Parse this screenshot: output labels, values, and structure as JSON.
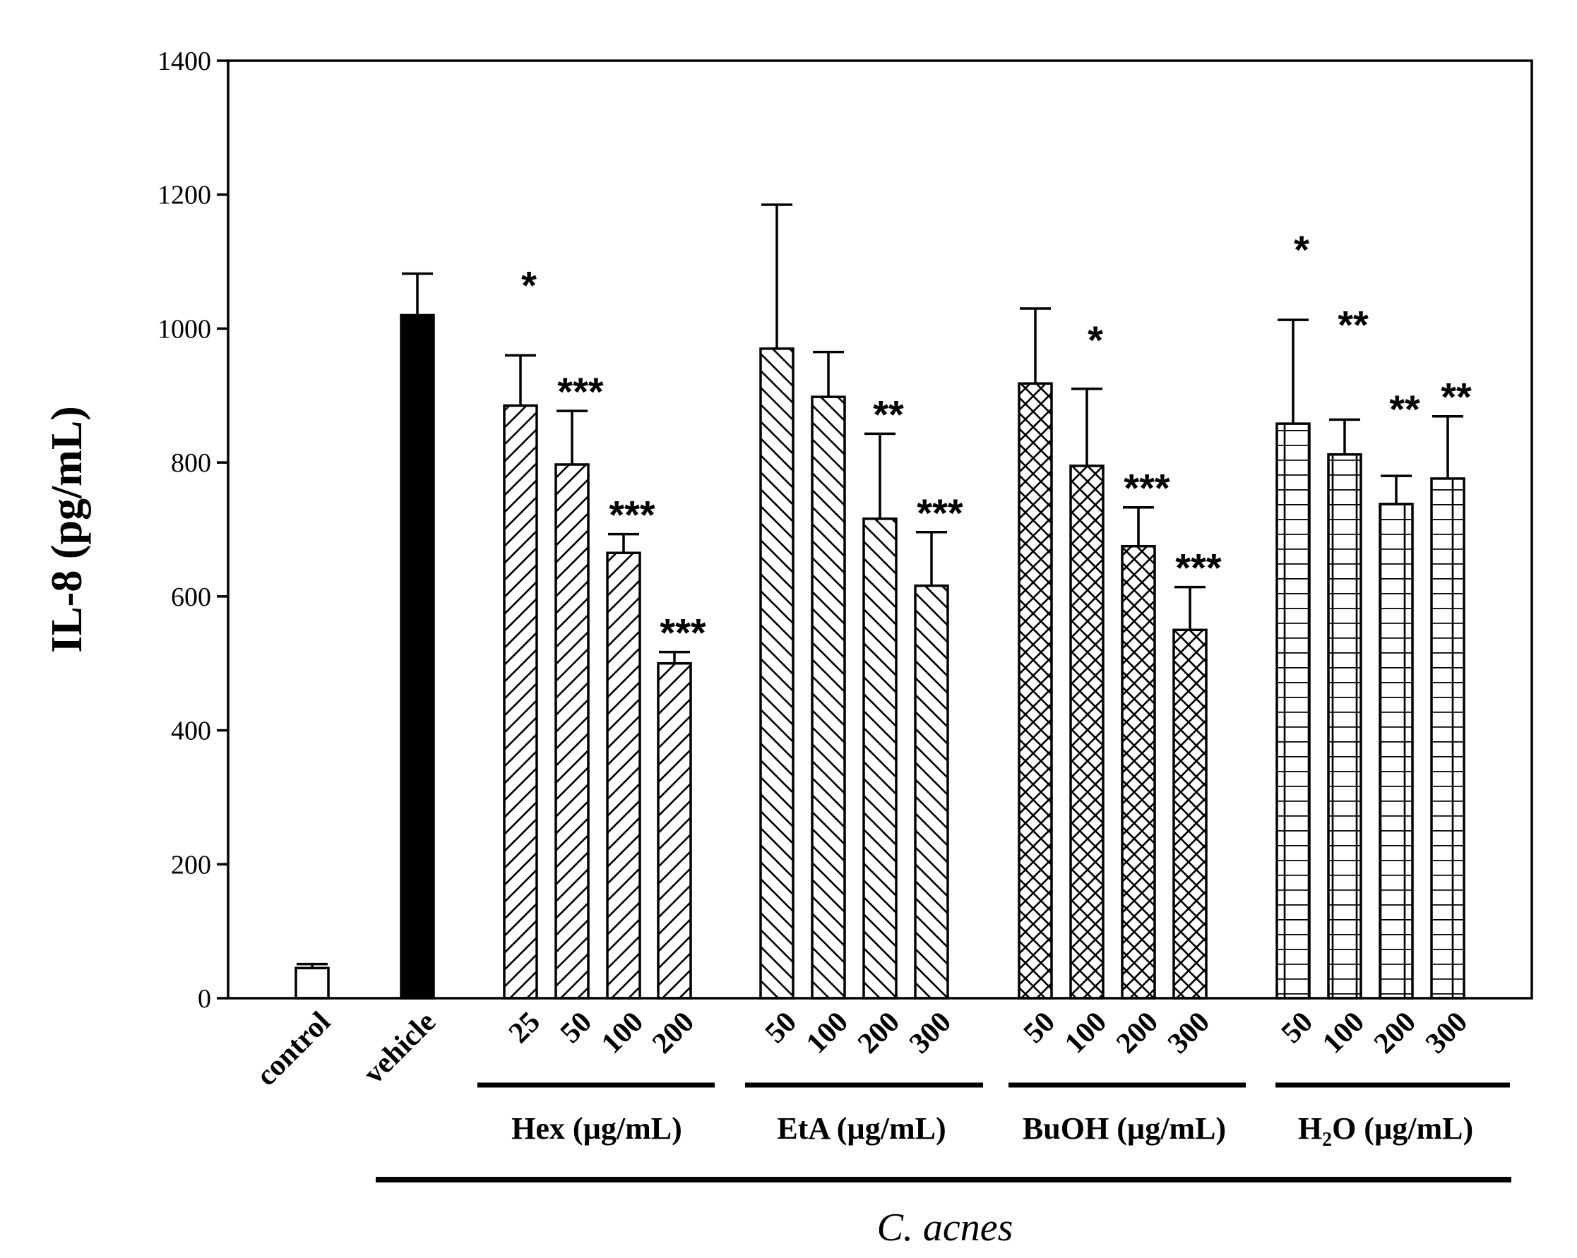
{
  "chart_data": {
    "type": "bar",
    "ylabel": "IL-8 (pg/mL)",
    "xlabel": "C. acnes",
    "ylim": [
      0,
      1400
    ],
    "yticks": [
      0,
      200,
      400,
      600,
      800,
      1000,
      1200,
      1400
    ],
    "ytick_labels": [
      "0",
      "200",
      "400",
      "600",
      "800",
      "1000",
      "1200",
      "1400"
    ],
    "bars": [
      {
        "group": "control",
        "label": "control",
        "value": 45,
        "error": 6,
        "sig": "",
        "pattern": "open"
      },
      {
        "group": "vehicle",
        "label": "vehicle",
        "value": 1020,
        "error": 62,
        "sig": "",
        "pattern": "solid"
      },
      {
        "group": "Hex",
        "label": "25",
        "value": 885,
        "error": 75,
        "sig": "*",
        "pattern": "diag-right"
      },
      {
        "group": "Hex",
        "label": "50",
        "value": 797,
        "error": 80,
        "sig": "***",
        "pattern": "diag-right"
      },
      {
        "group": "Hex",
        "label": "100",
        "value": 665,
        "error": 28,
        "sig": "***",
        "pattern": "diag-right"
      },
      {
        "group": "Hex",
        "label": "200",
        "value": 500,
        "error": 17,
        "sig": "***",
        "pattern": "diag-right"
      },
      {
        "group": "EtA",
        "label": "50",
        "value": 970,
        "error": 215,
        "sig": "",
        "pattern": "diag-left"
      },
      {
        "group": "EtA",
        "label": "100",
        "value": 898,
        "error": 67,
        "sig": "",
        "pattern": "diag-left"
      },
      {
        "group": "EtA",
        "label": "200",
        "value": 716,
        "error": 127,
        "sig": "**",
        "pattern": "diag-left"
      },
      {
        "group": "EtA",
        "label": "300",
        "value": 616,
        "error": 80,
        "sig": "***",
        "pattern": "diag-left"
      },
      {
        "group": "BuOH",
        "label": "50",
        "value": 918,
        "error": 112,
        "sig": "",
        "pattern": "cross"
      },
      {
        "group": "BuOH",
        "label": "100",
        "value": 795,
        "error": 115,
        "sig": "*",
        "pattern": "cross"
      },
      {
        "group": "BuOH",
        "label": "200",
        "value": 675,
        "error": 58,
        "sig": "***",
        "pattern": "cross"
      },
      {
        "group": "BuOH",
        "label": "300",
        "value": 550,
        "error": 64,
        "sig": "***",
        "pattern": "cross"
      },
      {
        "group": "H2O",
        "label": "50",
        "value": 858,
        "error": 155,
        "sig": "*",
        "pattern": "grid"
      },
      {
        "group": "H2O",
        "label": "100",
        "value": 812,
        "error": 52,
        "sig": "**",
        "pattern": "grid"
      },
      {
        "group": "H2O",
        "label": "200",
        "value": 738,
        "error": 42,
        "sig": "**",
        "pattern": "grid"
      },
      {
        "group": "H2O",
        "label": "300",
        "value": 776,
        "error": 93,
        "sig": "**",
        "pattern": "grid"
      }
    ],
    "groups": [
      {
        "key": "Hex",
        "label": "Hex (µg/mL)"
      },
      {
        "key": "EtA",
        "label": "EtA (µg/mL)"
      },
      {
        "key": "BuOH",
        "label": "BuOH (µg/mL)"
      },
      {
        "key": "H2O",
        "label_main": "H",
        "label_sub": "2",
        "label_rest": "O (µg/mL)"
      }
    ]
  }
}
